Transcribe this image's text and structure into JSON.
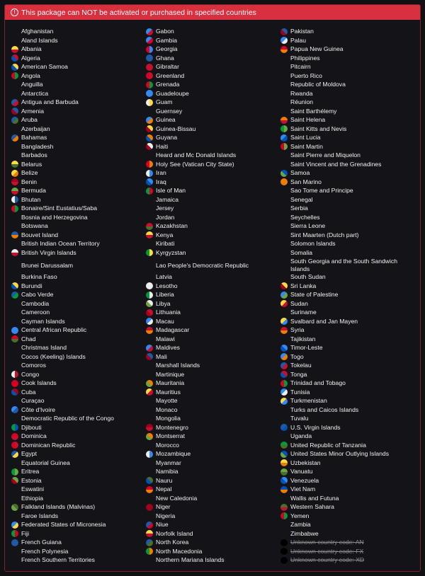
{
  "banner": {
    "icon": "exclamation-circle-icon",
    "text": "This package can NOT be activated or purchased in specified countries",
    "color": "#d9303f"
  },
  "columns": [
    [
      "Afghanistan",
      "Aland Islands",
      "Albania",
      "Algeria",
      "American Samoa",
      "Angola",
      "Anguilla",
      "Antarctica",
      "Antigua and Barbuda",
      "Armenia",
      "Aruba",
      "Azerbaijan",
      "Bahamas",
      "Bangladesh",
      "Barbados",
      "Belarus",
      "Belize",
      "Benin",
      "Bermuda",
      "Bhutan",
      "Bonaire/Sint Eustatius/Saba",
      "Bosnia and Herzegovina",
      "Botswana",
      "Bouvet Island",
      "British Indian Ocean Territory",
      "British Virgin Islands",
      "Brunei Darussalam",
      "Burkina Faso",
      "Burundi",
      "Cabo Verde",
      "Cambodia",
      "Cameroon",
      "Cayman Islands",
      "Central African Republic",
      "Chad",
      "Christmas Island",
      "Cocos (Keeling) Islands",
      "Comoros",
      "Congo",
      "Cook Islands",
      "Cuba",
      "Curaçao",
      "Côte d'Ivoire",
      "Democratic Republic of the Congo",
      "Djibouti",
      "Dominica",
      "Dominican Republic",
      "Egypt",
      "Equatorial Guinea",
      "Eritrea",
      "Estonia",
      "Eswatini",
      "Ethiopia",
      "Falkland Islands (Malvinas)",
      "Faroe Islands",
      "Federated States of Micronesia",
      "Fiji",
      "French Guiana",
      "French Polynesia",
      "French Southern Territories"
    ],
    [
      "Gabon",
      "Gambia",
      "Georgia",
      "Ghana",
      "Gibraltar",
      "Greenland",
      "Grenada",
      "Guadeloupe",
      "Guam",
      "Guernsey",
      "Guinea",
      "Guinea-Bissau",
      "Guyana",
      "Haiti",
      "Heard and Mc Donald Islands",
      "Holy See (Vatican City State)",
      "Iran",
      "Iraq",
      "Isle of Man",
      "Jamaica",
      "Jersey",
      "Jordan",
      "Kazakhstan",
      "Kenya",
      "Kiribati",
      "Kyrgyzstan",
      "Lao People's Democratic Republic",
      "Latvia",
      "Lesotho",
      "Liberia",
      "Libya",
      "Lithuania",
      "Macau",
      "Madagascar",
      "Malawi",
      "Maldives",
      "Mali",
      "Marshall Islands",
      "Martinique",
      "Mauritania",
      "Mauritius",
      "Mayotte",
      "Monaco",
      "Mongolia",
      "Montenegro",
      "Montserrat",
      "Morocco",
      "Mozambique",
      "Myanmar",
      "Namibia",
      "Nauru",
      "Nepal",
      "New Caledonia",
      "Niger",
      "Nigeria",
      "Niue",
      "Norfolk Island",
      "North Korea",
      "North Macedonia",
      "Northern Mariana Islands"
    ],
    [
      "Pakistan",
      "Palau",
      "Papua New Guinea",
      "Philippines",
      "Pitcairn",
      "Puerto Rico",
      "Republic of Moldova",
      "Rwanda",
      "Réunion",
      "Saint Barthélemy",
      "Saint Helena",
      "Saint Kitts and Nevis",
      "Saint Lucia",
      "Saint Martin",
      "Saint Pierre and Miquelon",
      "Saint Vincent and the Grenadines",
      "Samoa",
      "San Marino",
      "Sao Tome and Principe",
      "Senegal",
      "Serbia",
      "Seychelles",
      "Sierra Leone",
      "Sint Maarten (Dutch part)",
      "Solomon Islands",
      "Somalia",
      "South Georgia and the South Sandwich Islands",
      "South Sudan",
      "Sri Lanka",
      "State of Palestine",
      "Sudan",
      "Suriname",
      "Svalbard and Jan Mayen",
      "Syria",
      "Tajikistan",
      "Timor-Leste",
      "Togo",
      "Tokelau",
      "Tonga",
      "Trinidad and Tobago",
      "Tunisia",
      "Turkmenistan",
      "Turks and Caicos Islands",
      "Tuvalu",
      "U.S. Virgin Islands",
      "Uganda",
      "United Republic of Tanzania",
      "United States Minor Outlying Islands",
      "Uzbekistan",
      "Vanuatu",
      "Venezuela",
      "Viet Nam",
      "Wallis and Futuna",
      "Western Sahara",
      "Yemen",
      "Zambia",
      "Zimbabwe",
      "Unknown country code: AN",
      "Unknown country code: FX",
      "Unknown country code: XD"
    ]
  ],
  "unknown_prefix": "Unknown country code:"
}
